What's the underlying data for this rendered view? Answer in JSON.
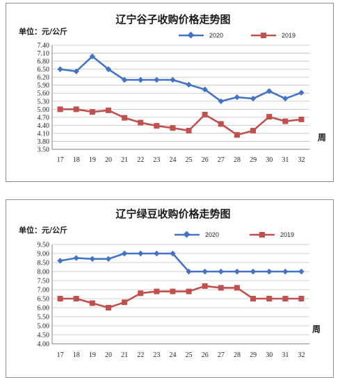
{
  "charts": [
    {
      "title": "辽宁谷子收购价格走势图",
      "unit_label": "单位：元/公斤",
      "xlabel": "周",
      "chart_data": {
        "type": "line",
        "categories": [
          "17",
          "18",
          "19",
          "20",
          "21",
          "22",
          "23",
          "24",
          "25",
          "26",
          "27",
          "28",
          "29",
          "30",
          "31",
          "32"
        ],
        "y_ticks": [
          "3.50",
          "3.80",
          "4.10",
          "4.40",
          "4.70",
          "5.00",
          "5.30",
          "5.60",
          "5.90",
          "6.20",
          "6.50",
          "6.80",
          "7.10",
          "7.40"
        ],
        "ylim": [
          3.5,
          7.4
        ],
        "legend_position": "top-right",
        "series": [
          {
            "name": "2020",
            "color": "#4472C4",
            "marker": "diamond",
            "values": [
              6.5,
              6.42,
              6.98,
              6.5,
              6.1,
              6.1,
              6.1,
              6.1,
              5.92,
              5.74,
              5.3,
              5.45,
              5.4,
              5.68,
              5.4,
              5.62
            ]
          },
          {
            "name": "2019",
            "color": "#C0504D",
            "marker": "square",
            "values": [
              5.0,
              5.0,
              4.9,
              4.96,
              4.68,
              4.5,
              4.38,
              4.3,
              4.2,
              4.8,
              4.45,
              4.04,
              4.2,
              4.72,
              4.55,
              4.62
            ]
          }
        ]
      }
    },
    {
      "title": "辽宁绿豆收购价格走势图",
      "unit_label": "单位：元/公斤",
      "xlabel": "周",
      "chart_data": {
        "type": "line",
        "categories": [
          "17",
          "18",
          "19",
          "20",
          "21",
          "22",
          "23",
          "24",
          "25",
          "26",
          "27",
          "28",
          "29",
          "30",
          "31",
          "32"
        ],
        "y_ticks": [
          "4.00",
          "4.50",
          "5.00",
          "5.50",
          "6.00",
          "6.50",
          "7.00",
          "7.50",
          "8.00",
          "8.50",
          "9.00",
          "9.50"
        ],
        "ylim": [
          4.0,
          9.5
        ],
        "legend_position": "top-right",
        "series": [
          {
            "name": "2020",
            "color": "#4472C4",
            "marker": "diamond",
            "values": [
              8.6,
              8.75,
              8.7,
              8.7,
              9.0,
              9.0,
              9.0,
              9.0,
              8.0,
              8.0,
              8.0,
              8.0,
              8.0,
              8.0,
              8.0,
              8.0
            ]
          },
          {
            "name": "2019",
            "color": "#C0504D",
            "marker": "square",
            "values": [
              6.5,
              6.5,
              6.25,
              6.0,
              6.3,
              6.8,
              6.9,
              6.9,
              6.9,
              7.2,
              7.1,
              7.1,
              6.5,
              6.5,
              6.5,
              6.5
            ]
          }
        ]
      }
    }
  ]
}
